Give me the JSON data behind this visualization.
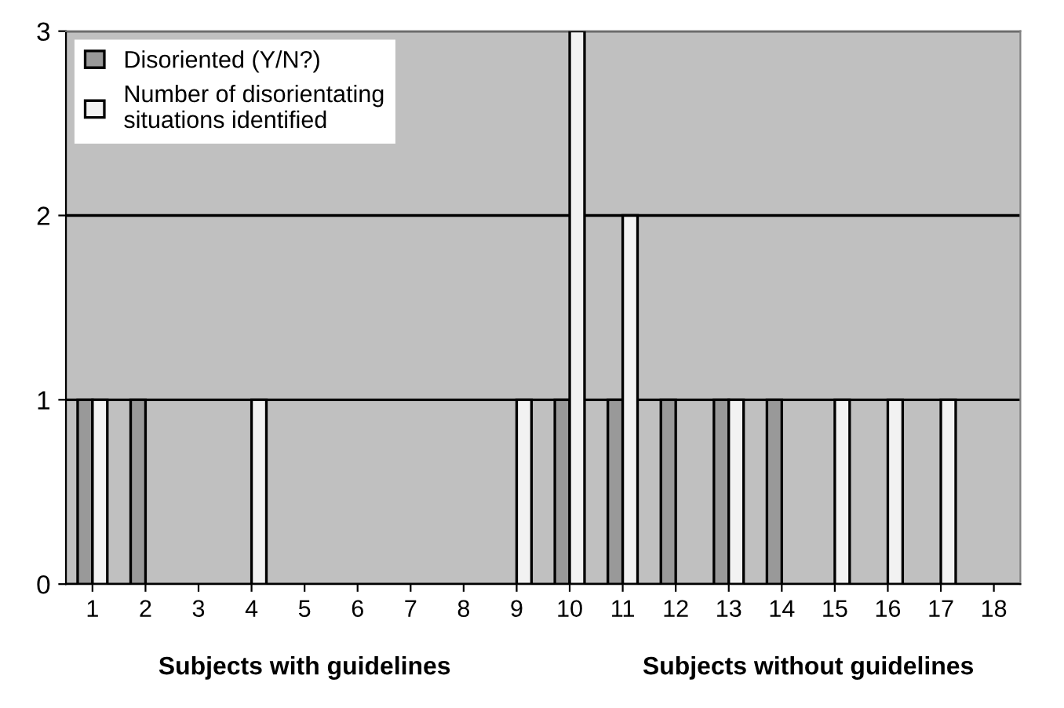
{
  "chart_data": {
    "type": "bar",
    "categories": [
      "1",
      "2",
      "3",
      "4",
      "5",
      "6",
      "7",
      "8",
      "9",
      "10",
      "11",
      "12",
      "13",
      "14",
      "15",
      "16",
      "17",
      "18"
    ],
    "series": [
      {
        "name": "Disoriented (Y/N?)",
        "color": "#999999",
        "values": [
          1,
          1,
          0,
          0,
          0,
          0,
          0,
          0,
          0,
          1,
          1,
          1,
          1,
          1,
          0,
          0,
          0,
          0
        ]
      },
      {
        "name": "Number of disorientating situations identified",
        "color": "#f2f2f2",
        "values": [
          1,
          0,
          0,
          1,
          0,
          0,
          0,
          0,
          1,
          3,
          2,
          0,
          1,
          0,
          1,
          1,
          1,
          0
        ]
      }
    ],
    "ylim": [
      0,
      3
    ],
    "yticks": [
      0,
      1,
      2,
      3
    ],
    "grid": "y",
    "legend": "top left",
    "annotations": [
      "Subjects with guidelines",
      "Subjects without guidelines"
    ]
  }
}
